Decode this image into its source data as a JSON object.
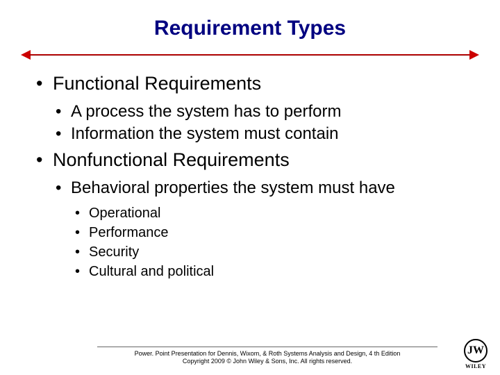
{
  "title": {
    "text": "Requirement Types",
    "color": "#000080",
    "fontsize": 30
  },
  "divider": {
    "color": "#cc0000"
  },
  "content": {
    "lvl1_fontsize": 27,
    "lvl2_fontsize": 24,
    "lvl3_fontsize": 20,
    "text_color": "#000000",
    "items": [
      {
        "label": "Functional Requirements",
        "children": [
          {
            "label": "A process the system has to perform"
          },
          {
            "label": "Information the system must contain"
          }
        ]
      },
      {
        "label": "Nonfunctional Requirements",
        "children": [
          {
            "label": "Behavioral properties the system must have",
            "children": [
              {
                "label": "Operational"
              },
              {
                "label": "Performance"
              },
              {
                "label": "Security"
              },
              {
                "label": "Cultural and political"
              }
            ]
          }
        ]
      }
    ]
  },
  "footer": {
    "line1": "Power. Point Presentation for Dennis, Wixom, & Roth Systems Analysis and Design, 4 th Edition",
    "line2": "Copyright 2009 © John Wiley & Sons, Inc.  All rights reserved.",
    "fontsize": 9
  },
  "logo": {
    "mark": "JW",
    "brand": "WILEY"
  }
}
